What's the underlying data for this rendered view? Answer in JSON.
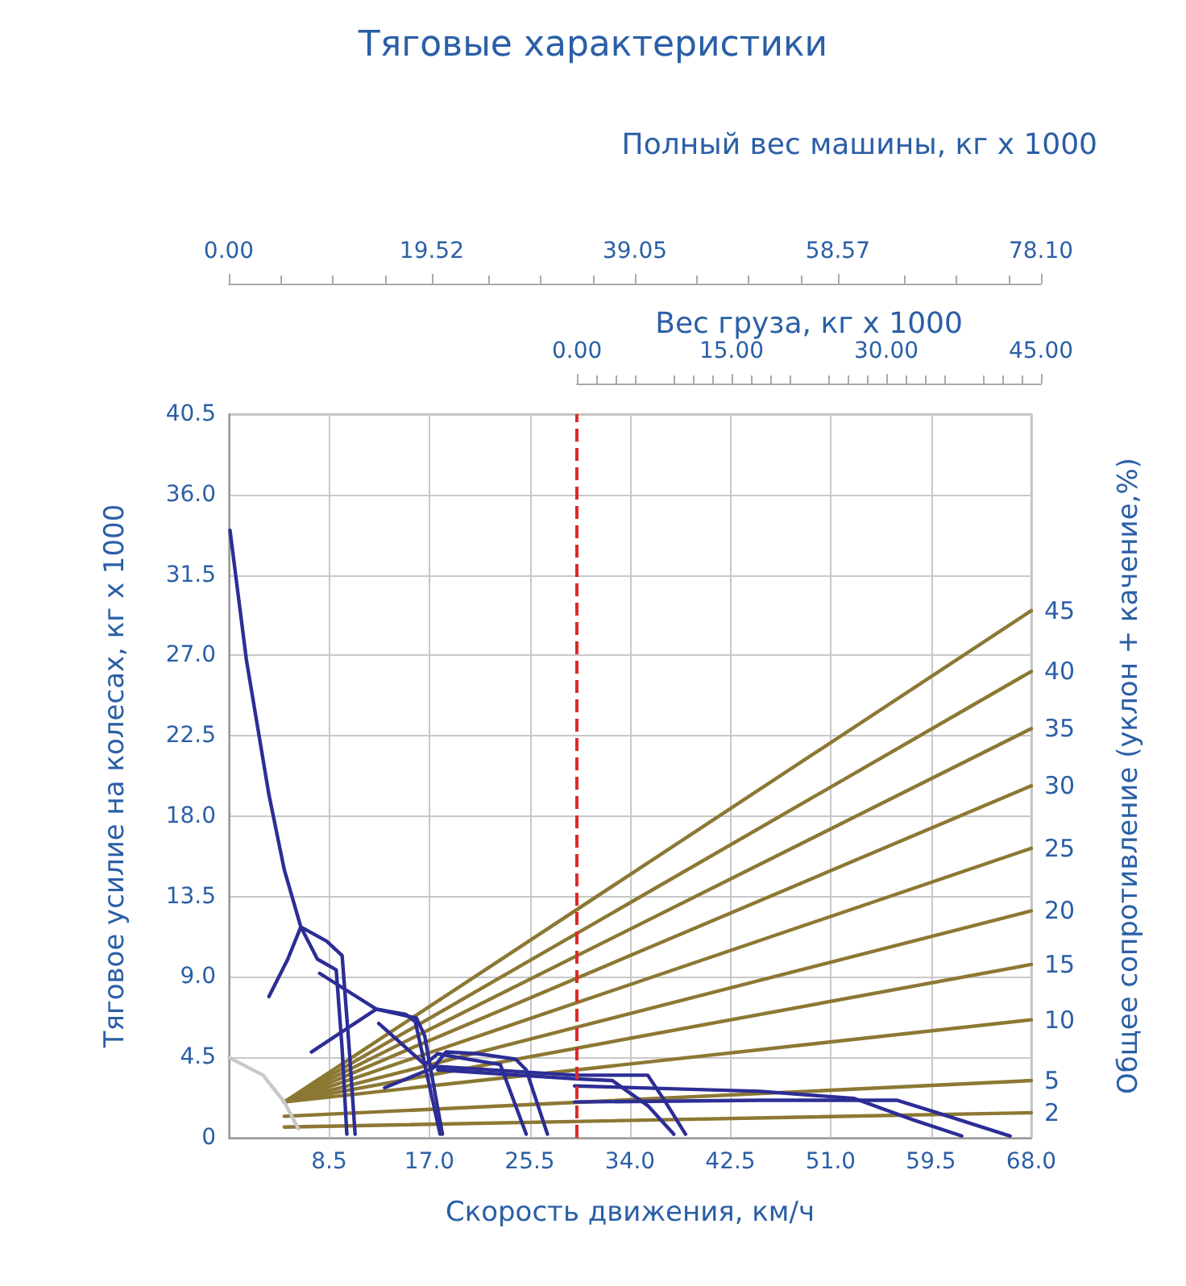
{
  "chart_data": {
    "type": "line",
    "title": "Тяговые характеристики",
    "xlabel": "Скорость движения, км/ч",
    "ylabel": "Тяговое усилие на колесах, кг x 1000",
    "y2label": "Общее сопротивление (уклон + качение,%)",
    "x2label": "Полный вес машины, кг x 1000",
    "annotations": [
      "Вес груза, кг x 1000",
      "0.00",
      "15.00",
      "30.00",
      "45.00"
    ],
    "xlim": [
      0,
      68
    ],
    "xticks": [
      {
        "value": 0,
        "label": null
      },
      8.5,
      {
        "value": 17,
        "label": "17.0"
      },
      25.5,
      {
        "value": 34,
        "label": "34.0"
      },
      42.5,
      {
        "value": 51,
        "label": "51.0"
      },
      59.5,
      {
        "value": 68,
        "label": "68.0"
      }
    ],
    "ylim": [
      0,
      40.5
    ],
    "yticks": [
      0,
      4.5,
      {
        "value": 9,
        "label": "9.0"
      },
      13.5,
      {
        "value": 18,
        "label": "18.0"
      },
      22.5,
      {
        "value": 27,
        "label": "27.0"
      },
      31.5,
      {
        "value": 36,
        "label": "36.0"
      },
      40.5
    ],
    "x2lim": [
      0,
      78.1
    ],
    "x2ticks": [
      {
        "value": 0,
        "label": "0.00"
      },
      19.52,
      39.05,
      58.57,
      {
        "value": 78.1,
        "label": "78.10"
      }
    ],
    "grid": true,
    "marker": "none",
    "ref_lines": [
      {
        "axis": "x",
        "value": 29.5,
        "color": "#e02828",
        "line_style": "dashed"
      }
    ],
    "series": [
      {
        "name": "45",
        "color": "#8c7833",
        "x": [
          4.7,
          68
        ],
        "values": [
          2.0,
          29.5
        ]
      },
      {
        "name": "40",
        "color": "#8c7833",
        "x": [
          4.7,
          68
        ],
        "values": [
          2.0,
          26.1
        ]
      },
      {
        "name": "35",
        "color": "#8c7833",
        "x": [
          4.7,
          68
        ],
        "values": [
          2.0,
          22.9
        ]
      },
      {
        "name": "30",
        "color": "#8c7833",
        "x": [
          4.7,
          68
        ],
        "values": [
          2.0,
          19.7
        ]
      },
      {
        "name": "25",
        "color": "#8c7833",
        "x": [
          4.7,
          68
        ],
        "values": [
          2.0,
          16.2
        ]
      },
      {
        "name": "20",
        "color": "#8c7833",
        "x": [
          4.7,
          68
        ],
        "values": [
          2.0,
          12.7
        ]
      },
      {
        "name": "15",
        "color": "#8c7833",
        "x": [
          4.7,
          68
        ],
        "values": [
          2.0,
          9.7
        ]
      },
      {
        "name": "10",
        "color": "#8c7833",
        "x": [
          4.7,
          68
        ],
        "values": [
          2.0,
          6.6
        ]
      },
      {
        "name": "5",
        "color": "#8c7833",
        "x": [
          4.7,
          68
        ],
        "values": [
          1.2,
          3.2
        ]
      },
      {
        "name": "2",
        "color": "#8c7833",
        "x": [
          4.7,
          68
        ],
        "values": [
          0.6,
          1.4
        ]
      },
      {
        "color": "#c8c8c8",
        "x": [
          0,
          2.9,
          4.7,
          5.9
        ],
        "values": [
          4.5,
          3.5,
          2.0,
          0.5
        ]
      },
      {
        "color": "#2d2d96",
        "x": [
          0.1,
          1.5,
          3.4,
          4.7,
          6.1,
          8.3,
          9.6,
          10.2,
          10.7
        ],
        "values": [
          34.0,
          26.7,
          19.2,
          15.0,
          11.8,
          11.0,
          10.2,
          5.0,
          0.2
        ]
      },
      {
        "color": "#2d2d96",
        "x": [
          3.4,
          5.0,
          6.1,
          7.5,
          9.1,
          9.6,
          10.0
        ],
        "values": [
          7.9,
          10.0,
          11.8,
          10.0,
          9.4,
          5.0,
          0.2
        ]
      },
      {
        "color": "#2d2d96",
        "x": [
          7.7,
          12.5,
          15.9,
          16.6,
          18.1
        ],
        "values": [
          9.2,
          7.2,
          6.7,
          5.7,
          0.2
        ]
      },
      {
        "color": "#2d2d96",
        "x": [
          7.0,
          12.5,
          15.0,
          15.8,
          17.9
        ],
        "values": [
          4.8,
          7.2,
          6.9,
          6.5,
          0.2
        ]
      },
      {
        "color": "#2d2d96",
        "x": [
          13.2,
          17.3,
          18.4,
          21.1,
          24.3,
          25.2,
          27.0
        ],
        "values": [
          2.8,
          3.9,
          4.8,
          4.7,
          4.4,
          3.8,
          0.2
        ]
      },
      {
        "color": "#2d2d96",
        "x": [
          12.7,
          16.6,
          17.7,
          20.2,
          23.0,
          25.2
        ],
        "values": [
          6.4,
          4.1,
          4.7,
          4.4,
          4.1,
          0.2
        ]
      },
      {
        "color": "#2d2d96",
        "x": [
          17.3,
          29.3,
          35.5,
          37.0,
          38.7
        ],
        "values": [
          4.0,
          3.5,
          3.5,
          2.0,
          0.2
        ]
      },
      {
        "color": "#2d2d96",
        "x": [
          17.7,
          29.3,
          32.5,
          35.5,
          37.7
        ],
        "values": [
          3.8,
          3.3,
          3.2,
          1.8,
          0.2
        ]
      },
      {
        "color": "#2d2d96",
        "x": [
          29.3,
          45.0,
          53.0,
          58.0,
          62.1
        ],
        "values": [
          2.9,
          2.6,
          2.2,
          1.0,
          0.1
        ]
      },
      {
        "color": "#2d2d96",
        "x": [
          29.3,
          45.0,
          56.6,
          60.0,
          66.2
        ],
        "values": [
          2.0,
          2.1,
          2.1,
          1.4,
          0.1
        ]
      }
    ]
  }
}
